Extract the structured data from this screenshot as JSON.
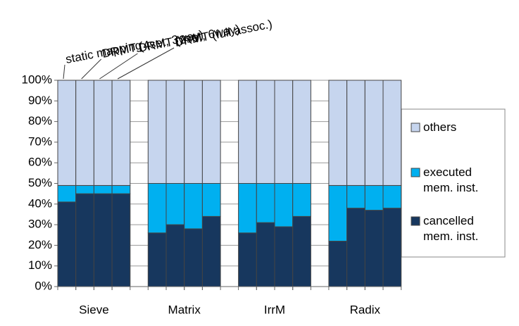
{
  "chart_data": {
    "type": "stacked-bar",
    "groups": [
      "Sieve",
      "Matrix",
      "IrrM",
      "Radix"
    ],
    "configs": [
      "static mapping",
      "DRMT (4set, 3way)",
      "DRMT (2set, 6way)",
      "DRMT (full assoc.)"
    ],
    "series": [
      {
        "name": "cancelled mem. inst.",
        "color": "#17375e",
        "values": [
          41,
          45,
          45,
          45,
          26,
          30,
          28,
          34,
          26,
          31,
          29,
          34,
          22,
          38,
          37,
          38
        ]
      },
      {
        "name": "executed mem. inst.",
        "color": "#00b0f0",
        "values": [
          8,
          4,
          4,
          4,
          24,
          20,
          22,
          16,
          24,
          19,
          21,
          16,
          27,
          11,
          12,
          11
        ]
      },
      {
        "name": "others",
        "color": "#c6d5ee",
        "values": [
          51,
          51,
          51,
          51,
          50,
          50,
          50,
          50,
          50,
          50,
          50,
          50,
          51,
          51,
          51,
          51
        ]
      }
    ],
    "ylim": [
      0,
      100
    ],
    "yticks": [
      {
        "value": 0,
        "label": "0%"
      },
      {
        "value": 10,
        "label": "10%"
      },
      {
        "value": 20,
        "label": "20%"
      },
      {
        "value": 30,
        "label": "30%"
      },
      {
        "value": 40,
        "label": "40%"
      },
      {
        "value": 50,
        "label": "50%"
      },
      {
        "value": 60,
        "label": "60%"
      },
      {
        "value": 70,
        "label": "70%"
      },
      {
        "value": 80,
        "label": "80%"
      },
      {
        "value": 90,
        "label": "90%"
      },
      {
        "value": 100,
        "label": "100%"
      }
    ],
    "grid": true
  }
}
